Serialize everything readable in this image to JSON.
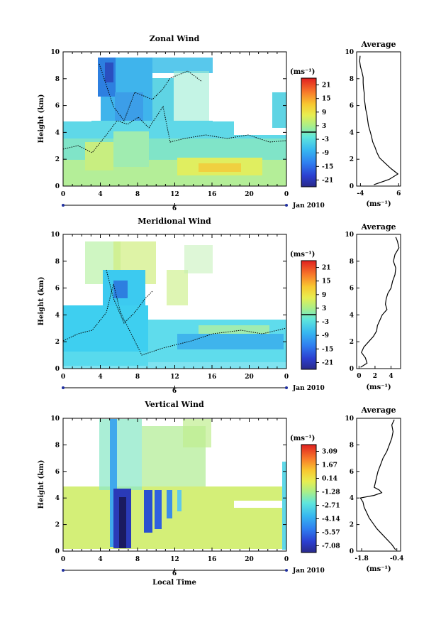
{
  "chart_data": [
    {
      "type": "heatmap",
      "title": "Zonal Wind",
      "ylabel": "Height (km)",
      "ylim": [
        0,
        10
      ],
      "y_ticks": [
        0,
        2,
        4,
        6,
        8,
        10
      ],
      "xlim": [
        0,
        24
      ],
      "x_ticks": [
        "0",
        "4",
        "8",
        "12",
        "16",
        "20",
        "0"
      ],
      "date_day": "6",
      "date_label": "Jan 2010",
      "colorbar": {
        "unit": "(ms⁻¹)",
        "ticks": [
          "21",
          "15",
          "9",
          "3",
          "-3",
          "-9",
          "-15",
          "-21"
        ],
        "contour_level": "0"
      },
      "average": {
        "title": "Average",
        "xlabel": "(ms⁻¹)",
        "x_ticks": [
          "-4",
          "6"
        ],
        "xlim": [
          -5,
          6.5
        ],
        "y_ticks": [
          0,
          2,
          4,
          6,
          8,
          10
        ],
        "height": [
          0.1,
          0.5,
          0.9,
          1.3,
          1.7,
          2.1,
          2.5,
          2.9,
          3.3,
          3.7,
          4.1,
          4.5,
          4.9,
          5.3,
          5.7,
          6.1,
          6.5,
          6.9,
          7.3,
          7.7,
          8.1,
          8.5,
          8.9,
          9.3,
          9.7
        ],
        "value": [
          -0.5,
          3.5,
          5.8,
          4.0,
          2.5,
          1.0,
          0.3,
          -0.2,
          -0.8,
          -1.1,
          -1.5,
          -1.9,
          -2.1,
          -2.3,
          -2.6,
          -2.8,
          -3.0,
          -3.0,
          -3.2,
          -3.3,
          -3.3,
          -3.6,
          -4.0,
          -4.2,
          -4.1
        ]
      }
    },
    {
      "type": "heatmap",
      "title": "Meridional Wind",
      "ylabel": "Height (km)",
      "ylim": [
        0,
        10
      ],
      "y_ticks": [
        0,
        2,
        4,
        6,
        8,
        10
      ],
      "xlim": [
        0,
        24
      ],
      "x_ticks": [
        "0",
        "4",
        "8",
        "12",
        "16",
        "20",
        "0"
      ],
      "date_day": "6",
      "date_label": "Jan 2010",
      "colorbar": {
        "unit": "(ms⁻¹)",
        "ticks": [
          "21",
          "15",
          "9",
          "3",
          "-3",
          "-9",
          "-15",
          "-21"
        ],
        "contour_level": "0"
      },
      "average": {
        "title": "Average",
        "xlabel": "(ms⁻¹)",
        "x_ticks": [
          "0",
          "2",
          "4"
        ],
        "xlim": [
          -0.3,
          5.2
        ],
        "y_ticks": [
          0,
          2,
          4,
          6,
          8,
          10
        ],
        "height": [
          0.1,
          0.4,
          0.8,
          1.2,
          1.6,
          2.0,
          2.4,
          2.8,
          3.2,
          3.6,
          4.0,
          4.4,
          4.8,
          5.2,
          5.6,
          6.0,
          6.5,
          7.0,
          7.5,
          8.0,
          8.5,
          9.0,
          9.5,
          9.8
        ],
        "value": [
          0.2,
          1.0,
          0.8,
          0.3,
          0.6,
          1.2,
          1.8,
          2.2,
          2.3,
          2.6,
          2.9,
          3.5,
          3.3,
          3.4,
          3.6,
          4.0,
          4.2,
          4.5,
          4.6,
          4.3,
          4.5,
          5.0,
          4.8,
          4.6
        ]
      }
    },
    {
      "type": "heatmap",
      "title": "Vertical Wind",
      "ylabel": "Height (km)",
      "ylim": [
        0,
        10
      ],
      "y_ticks": [
        0,
        2,
        4,
        6,
        8,
        10
      ],
      "xlim": [
        0,
        24
      ],
      "x_ticks": [
        "0",
        "4",
        "8",
        "12",
        "16",
        "20",
        "0"
      ],
      "xlabel": "Local Time",
      "date_day": "6",
      "date_label": "Jan 2010",
      "colorbar": {
        "unit": "(ms⁻¹)",
        "ticks": [
          "3.09",
          "1.67",
          "0.14",
          "-1.28",
          "-2.71",
          "-4.14",
          "-5.57",
          "-7.08"
        ]
      },
      "average": {
        "title": "Average",
        "xlabel": "(ms⁻¹)",
        "x_ticks": [
          "-1.8",
          "-0.4"
        ],
        "xlim": [
          -2.0,
          -0.25
        ],
        "y_ticks": [
          0,
          2,
          4,
          6,
          8,
          10
        ],
        "height": [
          0.1,
          0.5,
          0.9,
          1.3,
          1.7,
          2.1,
          2.5,
          2.9,
          3.3,
          3.7,
          4.0,
          4.2,
          4.4,
          4.6,
          4.8,
          5.2,
          5.6,
          6.0,
          6.5,
          7.0,
          7.5,
          8.0,
          8.5,
          9.0,
          9.5,
          9.9
        ],
        "value": [
          -0.45,
          -0.6,
          -0.8,
          -1.0,
          -1.2,
          -1.35,
          -1.5,
          -1.6,
          -1.7,
          -1.75,
          -1.85,
          -1.3,
          -1.0,
          -1.1,
          -1.3,
          -1.25,
          -1.2,
          -1.15,
          -1.05,
          -0.95,
          -0.8,
          -0.7,
          -0.6,
          -0.55,
          -0.6,
          -0.5
        ]
      }
    }
  ]
}
